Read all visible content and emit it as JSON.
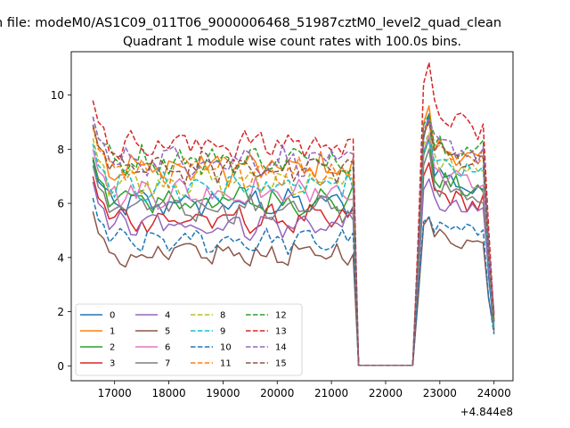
{
  "chart_data": {
    "type": "line",
    "suptitle": "n file: modeM0/AS1C09_011T06_9000006468_51987cztM0_level2_quad_clean",
    "title": "Quadrant 1 module wise count rates with 100.0s bins.",
    "xlabel": "",
    "ylabel": "",
    "x_offset_label": "+4.844e8",
    "xlim": [
      16200,
      24350
    ],
    "ylim": [
      -0.55,
      11.6
    ],
    "xticks": [
      17000,
      18000,
      19000,
      20000,
      21000,
      22000,
      23000,
      24000
    ],
    "yticks": [
      0,
      2,
      4,
      6,
      8,
      10
    ],
    "x_start": 16600,
    "x_step": 100,
    "legend_location": "lower-left",
    "legend_columns": 4,
    "grid": false,
    "series": [
      {
        "name": "0",
        "color": "#1f77b4",
        "dash": "solid",
        "level": 6.0,
        "post": 6.3,
        "peak": 9.3,
        "spread": 0.35
      },
      {
        "name": "1",
        "color": "#ff7f0e",
        "dash": "solid",
        "level": 7.3,
        "post": 7.5,
        "peak": 9.6,
        "spread": 0.45
      },
      {
        "name": "2",
        "color": "#2ca02c",
        "dash": "solid",
        "level": 6.1,
        "post": 6.3,
        "peak": 8.4,
        "spread": 0.4
      },
      {
        "name": "3",
        "color": "#d62728",
        "dash": "solid",
        "level": 5.4,
        "post": 5.9,
        "peak": 7.5,
        "spread": 0.35
      },
      {
        "name": "4",
        "color": "#9467bd",
        "dash": "solid",
        "level": 5.2,
        "post": 5.6,
        "peak": 6.9,
        "spread": 0.35
      },
      {
        "name": "5",
        "color": "#8c564b",
        "dash": "solid",
        "level": 4.1,
        "post": 4.5,
        "peak": 5.5,
        "spread": 0.35
      },
      {
        "name": "6",
        "color": "#e377c2",
        "dash": "solid",
        "level": 6.4,
        "post": 6.6,
        "peak": 8.5,
        "spread": 0.4
      },
      {
        "name": "7",
        "color": "#7f7f7f",
        "dash": "solid",
        "level": 5.8,
        "post": 6.0,
        "peak": 8.0,
        "spread": 0.35
      },
      {
        "name": "8",
        "color": "#bcbd22",
        "dash": "dashed",
        "level": 6.8,
        "post": 7.1,
        "peak": 8.6,
        "spread": 0.4
      },
      {
        "name": "9",
        "color": "#17becf",
        "dash": "dashed",
        "level": 6.6,
        "post": 7.0,
        "peak": 8.3,
        "spread": 0.4
      },
      {
        "name": "10",
        "color": "#1f77b4",
        "dash": "dashed",
        "level": 4.6,
        "post": 4.9,
        "peak": 5.5,
        "spread": 0.3
      },
      {
        "name": "11",
        "color": "#ff7f0e",
        "dash": "dashed",
        "level": 7.2,
        "post": 7.6,
        "peak": 9.0,
        "spread": 0.4
      },
      {
        "name": "12",
        "color": "#2ca02c",
        "dash": "dashed",
        "level": 7.6,
        "post": 7.9,
        "peak": 9.3,
        "spread": 0.4
      },
      {
        "name": "13",
        "color": "#d62728",
        "dash": "dashed",
        "level": 8.2,
        "post": 8.6,
        "peak": 11.2,
        "spread": 0.45
      },
      {
        "name": "14",
        "color": "#9467bd",
        "dash": "dashed",
        "level": 7.6,
        "post": 7.8,
        "peak": 9.1,
        "spread": 0.4
      },
      {
        "name": "15",
        "color": "#8c564b",
        "dash": "dashed",
        "level": 7.3,
        "post": 7.5,
        "peak": 9.0,
        "spread": 0.4
      }
    ]
  }
}
